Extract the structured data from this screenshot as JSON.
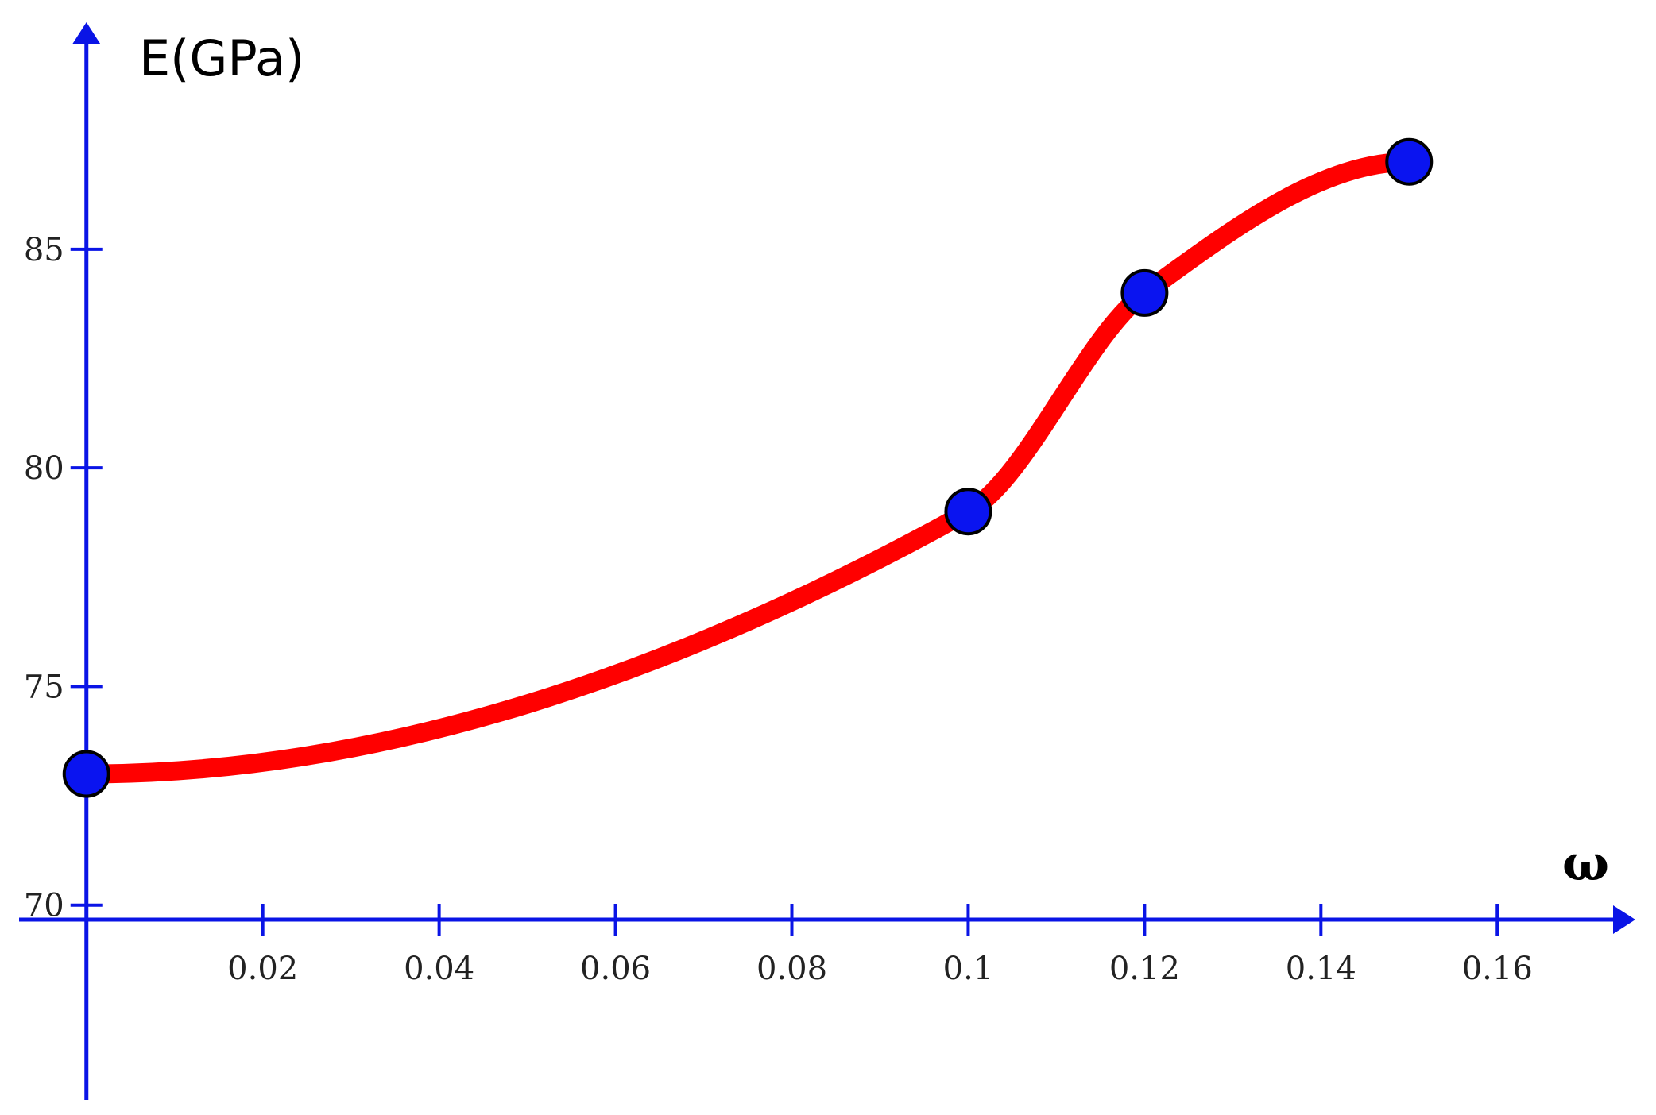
{
  "chart_data": {
    "type": "line",
    "title": "",
    "xlabel": "ω",
    "ylabel": "E(GPa)",
    "xlim": [
      -0.0098,
      0.178
    ],
    "ylim": [
      65.2,
      90.7
    ],
    "x_ticks": [
      0.02,
      0.04,
      0.06,
      0.08,
      0.1,
      0.12,
      0.14,
      0.16
    ],
    "x_tick_labels": [
      "0.02",
      "0.04",
      "0.06",
      "0.08",
      "0.1",
      "0.12",
      "0.14",
      "0.16"
    ],
    "y_ticks": [
      70,
      75,
      80,
      85
    ],
    "y_tick_labels": [
      "70",
      "75",
      "80",
      "85"
    ],
    "grid": false,
    "legend": "none",
    "series": [
      {
        "x": [
          0.0,
          0.1,
          0.12,
          0.15
        ],
        "y": [
          73,
          79,
          84,
          87
        ]
      }
    ],
    "colors": {
      "axis": "#0a14e6",
      "curve": "#ff0000",
      "marker_fill": "#0a14f0",
      "marker_stroke": "#000000"
    }
  }
}
